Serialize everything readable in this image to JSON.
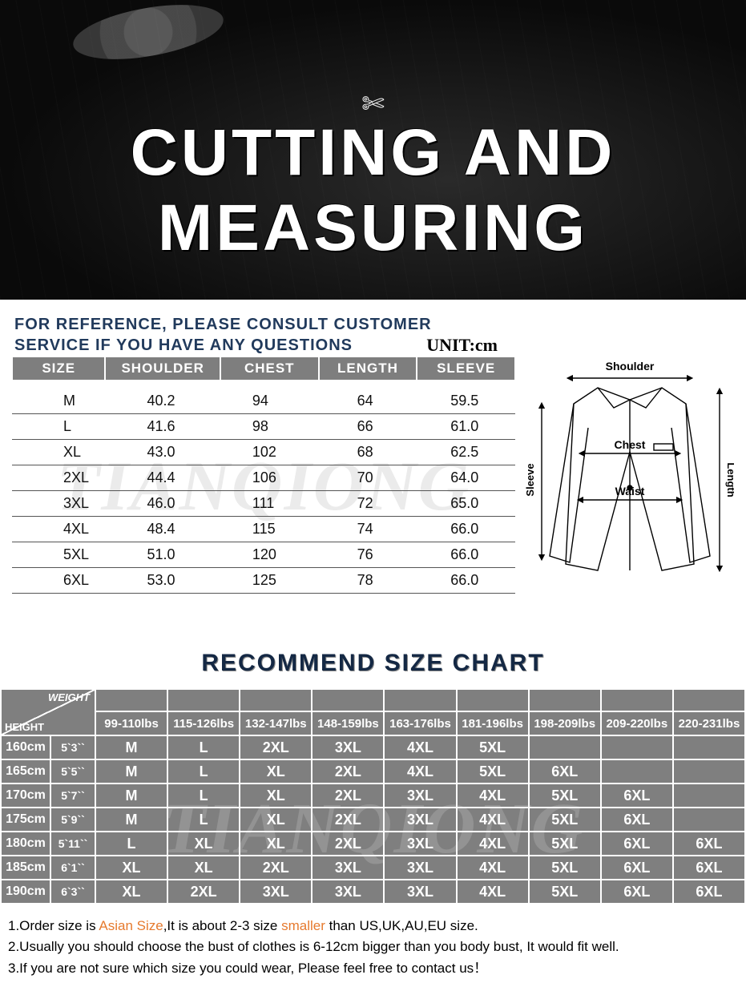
{
  "hero": {
    "title": "CUTTING AND MEASURING",
    "scissors_glyph": "✄"
  },
  "reference": {
    "line1": "FOR REFERENCE, PLEASE CONSULT CUSTOMER",
    "line2": "SERVICE IF YOU HAVE ANY QUESTIONS",
    "unit_label": "UNIT:cm"
  },
  "watermark": "TIANQIONG",
  "size_table": {
    "headers": [
      "SIZE",
      "SHOULDER",
      "CHEST",
      "LENGTH",
      "SLEEVE"
    ],
    "rows": [
      [
        "M",
        "40.2",
        "94",
        "64",
        "59.5"
      ],
      [
        "L",
        "41.6",
        "98",
        "66",
        "61.0"
      ],
      [
        "XL",
        "43.0",
        "102",
        "68",
        "62.5"
      ],
      [
        "2XL",
        "44.4",
        "106",
        "70",
        "64.0"
      ],
      [
        "3XL",
        "46.0",
        "111",
        "72",
        "65.0"
      ],
      [
        "4XL",
        "48.4",
        "115",
        "74",
        "66.0"
      ],
      [
        "5XL",
        "51.0",
        "120",
        "76",
        "66.0"
      ],
      [
        "6XL",
        "53.0",
        "125",
        "78",
        "66.0"
      ]
    ]
  },
  "diagram_labels": {
    "shoulder": "Shoulder",
    "chest": "Chest",
    "waist": "Waist",
    "length": "Length",
    "sleeve": "Sleeve"
  },
  "recommend": {
    "title": "RECOMMEND SIZE CHART",
    "diag_weight": "WEIGHT",
    "diag_height": "HEIGHT",
    "weights": [
      "99-110lbs",
      "115-126lbs",
      "132-147lbs",
      "148-159lbs",
      "163-176lbs",
      "181-196lbs",
      "198-209lbs",
      "209-220lbs",
      "220-231lbs"
    ],
    "heights": [
      {
        "cm": "160cm",
        "ft": "5`3``"
      },
      {
        "cm": "165cm",
        "ft": "5`5``"
      },
      {
        "cm": "170cm",
        "ft": "5`7``"
      },
      {
        "cm": "175cm",
        "ft": "5`9``"
      },
      {
        "cm": "180cm",
        "ft": "5`11``"
      },
      {
        "cm": "185cm",
        "ft": "6`1``"
      },
      {
        "cm": "190cm",
        "ft": "6`3``"
      }
    ],
    "grid": [
      [
        "M",
        "L",
        "2XL",
        "3XL",
        "4XL",
        "5XL",
        "",
        "",
        ""
      ],
      [
        "M",
        "L",
        "XL",
        "2XL",
        "4XL",
        "5XL",
        "6XL",
        "",
        ""
      ],
      [
        "M",
        "L",
        "XL",
        "2XL",
        "3XL",
        "4XL",
        "5XL",
        "6XL",
        ""
      ],
      [
        "M",
        "L",
        "XL",
        "2XL",
        "3XL",
        "4XL",
        "5XL",
        "6XL",
        ""
      ],
      [
        "L",
        "XL",
        "XL",
        "2XL",
        "3XL",
        "4XL",
        "5XL",
        "6XL",
        "6XL"
      ],
      [
        "XL",
        "XL",
        "2XL",
        "3XL",
        "3XL",
        "4XL",
        "5XL",
        "6XL",
        "6XL"
      ],
      [
        "XL",
        "2XL",
        "3XL",
        "3XL",
        "3XL",
        "4XL",
        "5XL",
        "6XL",
        "6XL"
      ]
    ]
  },
  "notes": {
    "n1_a": "1.Order size is ",
    "n1_hl": "Asian Size",
    "n1_b": ",It is about 2-3 size ",
    "n1_hl2": "smaller",
    "n1_c": " than US,UK,AU,EU size.",
    "n2": "2.Usually you should choose the bust of clothes is 6-12cm bigger than you body bust, It would fit well.",
    "n3": "3.If you are not sure which size you could wear, Please feel free to contact us！"
  },
  "colors": {
    "header_gray": "#7e7e7e",
    "dark_text": "#142844",
    "highlight": "#e67a2e"
  }
}
